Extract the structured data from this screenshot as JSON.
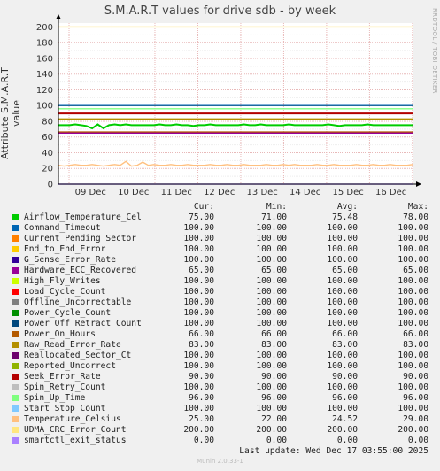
{
  "window": {
    "title": "S.M.A.R.T values for drive sdb - by week"
  },
  "side_text": "RRDTOOL / TOBI OETIKER",
  "legend_header": {
    "cur": "Cur:",
    "min": "Min:",
    "avg": "Avg:",
    "max": "Max:"
  },
  "footer": {
    "last_update": "Last update:  Wed Dec 17 03:55:00 2025",
    "version": "Munin 2.0.33-1"
  },
  "colors": {
    "background": "#f0f0f0",
    "plot_bg": "#ffffff",
    "grid_major": "#e8b8b8",
    "grid_minor": "#eeeeee"
  },
  "chart_data": {
    "type": "line",
    "title": "S.M.A.R.T values for drive sdb - by week",
    "xlabel": "",
    "ylabel": "Attribute S.M.A.R.T value",
    "ylim": [
      0,
      205
    ],
    "yticks": [
      "0",
      "20",
      "40",
      "60",
      "80",
      "100",
      "120",
      "140",
      "160",
      "180",
      "200"
    ],
    "xticks": [
      "09 Dec",
      "10 Dec",
      "11 Dec",
      "12 Dec",
      "13 Dec",
      "14 Dec",
      "15 Dec",
      "16 Dec"
    ],
    "grid": true,
    "series": [
      {
        "name": "Airflow_Temperature_Cel",
        "color": "#00cc00",
        "cur": "75.00",
        "min": "71.00",
        "avg": "75.48",
        "max": "78.00",
        "values": [
          75,
          75,
          75,
          76,
          75,
          74,
          71,
          76,
          71,
          75,
          76,
          75,
          76,
          75,
          75,
          75,
          75,
          75,
          76,
          75,
          75,
          76,
          75,
          75,
          74,
          75,
          75,
          76,
          75,
          75,
          75,
          75,
          75,
          76,
          75,
          75,
          76,
          75,
          75,
          75,
          75,
          76,
          75,
          75,
          75,
          75,
          75,
          75,
          76,
          75,
          74,
          75,
          75,
          75,
          75,
          76,
          75,
          75,
          75,
          75,
          75,
          75,
          75,
          75
        ]
      },
      {
        "name": "Command_Timeout",
        "color": "#0066b3",
        "cur": "100.00",
        "min": "100.00",
        "avg": "100.00",
        "max": "100.00",
        "values": [
          100,
          100
        ]
      },
      {
        "name": "Current_Pending_Sector",
        "color": "#ff8000",
        "cur": "100.00",
        "min": "100.00",
        "avg": "100.00",
        "max": "100.00",
        "values": [
          100,
          100
        ]
      },
      {
        "name": "End_to_End_Error",
        "color": "#ffcc00",
        "cur": "100.00",
        "min": "100.00",
        "avg": "100.00",
        "max": "100.00",
        "values": [
          100,
          100
        ]
      },
      {
        "name": "G_Sense_Error_Rate",
        "color": "#330099",
        "cur": "100.00",
        "min": "100.00",
        "avg": "100.00",
        "max": "100.00",
        "values": [
          100,
          100
        ]
      },
      {
        "name": "Hardware_ECC_Recovered",
        "color": "#990099",
        "cur": "65.00",
        "min": "65.00",
        "avg": "65.00",
        "max": "65.00",
        "values": [
          65,
          65
        ]
      },
      {
        "name": "High_Fly_Writes",
        "color": "#ccff00",
        "cur": "100.00",
        "min": "100.00",
        "avg": "100.00",
        "max": "100.00",
        "values": [
          100,
          100
        ]
      },
      {
        "name": "Load_Cycle_Count",
        "color": "#ff0000",
        "cur": "100.00",
        "min": "100.00",
        "avg": "100.00",
        "max": "100.00",
        "values": [
          100,
          100
        ]
      },
      {
        "name": "Offline_Uncorrectable",
        "color": "#808080",
        "cur": "100.00",
        "min": "100.00",
        "avg": "100.00",
        "max": "100.00",
        "values": [
          100,
          100
        ]
      },
      {
        "name": "Power_Cycle_Count",
        "color": "#008f00",
        "cur": "100.00",
        "min": "100.00",
        "avg": "100.00",
        "max": "100.00",
        "values": [
          100,
          100
        ]
      },
      {
        "name": "Power_Off_Retract_Count",
        "color": "#00487d",
        "cur": "100.00",
        "min": "100.00",
        "avg": "100.00",
        "max": "100.00",
        "values": [
          100,
          100
        ]
      },
      {
        "name": "Power_On_Hours",
        "color": "#b35a00",
        "cur": "66.00",
        "min": "66.00",
        "avg": "66.00",
        "max": "66.00",
        "values": [
          66,
          66
        ]
      },
      {
        "name": "Raw_Read_Error_Rate",
        "color": "#b38f00",
        "cur": "83.00",
        "min": "83.00",
        "avg": "83.00",
        "max": "83.00",
        "values": [
          83,
          83
        ]
      },
      {
        "name": "Reallocated_Sector_Ct",
        "color": "#6b006b",
        "cur": "100.00",
        "min": "100.00",
        "avg": "100.00",
        "max": "100.00",
        "values": [
          100,
          100
        ]
      },
      {
        "name": "Reported_Uncorrect",
        "color": "#8fb300",
        "cur": "100.00",
        "min": "100.00",
        "avg": "100.00",
        "max": "100.00",
        "values": [
          100,
          100
        ]
      },
      {
        "name": "Seek_Error_Rate",
        "color": "#b30000",
        "cur": "90.00",
        "min": "90.00",
        "avg": "90.00",
        "max": "90.00",
        "values": [
          90,
          90
        ]
      },
      {
        "name": "Spin_Retry_Count",
        "color": "#bebebe",
        "cur": "100.00",
        "min": "100.00",
        "avg": "100.00",
        "max": "100.00",
        "values": [
          100,
          100
        ]
      },
      {
        "name": "Spin_Up_Time",
        "color": "#80ff80",
        "cur": "96.00",
        "min": "96.00",
        "avg": "96.00",
        "max": "96.00",
        "values": [
          96,
          96
        ]
      },
      {
        "name": "Start_Stop_Count",
        "color": "#80c9ff",
        "cur": "100.00",
        "min": "100.00",
        "avg": "100.00",
        "max": "100.00",
        "values": [
          100,
          100
        ]
      },
      {
        "name": "Temperature_Celsius",
        "color": "#ffc080",
        "cur": "25.00",
        "min": "22.00",
        "avg": "24.52",
        "max": "29.00",
        "values": [
          24,
          23,
          24,
          25,
          24,
          24,
          25,
          24,
          23,
          24,
          25,
          24,
          29,
          23,
          24,
          28,
          24,
          25,
          24,
          24,
          25,
          24,
          24,
          25,
          24,
          24,
          24,
          25,
          24,
          24,
          25,
          24,
          24,
          25,
          24,
          24,
          24,
          25,
          24,
          24,
          25,
          24,
          25,
          24,
          24,
          24,
          25,
          24,
          24,
          25,
          24,
          24,
          24,
          25,
          24,
          24,
          25,
          24,
          24,
          25,
          24,
          24,
          24,
          25
        ]
      },
      {
        "name": "UDMA_CRC_Error_Count",
        "color": "#ffe680",
        "cur": "200.00",
        "min": "200.00",
        "avg": "200.00",
        "max": "200.00",
        "values": [
          200,
          200
        ]
      },
      {
        "name": "smartctl_exit_status",
        "color": "#aa80ff",
        "cur": "0.00",
        "min": "0.00",
        "avg": "0.00",
        "max": "0.00",
        "values": [
          0,
          0
        ]
      }
    ]
  }
}
